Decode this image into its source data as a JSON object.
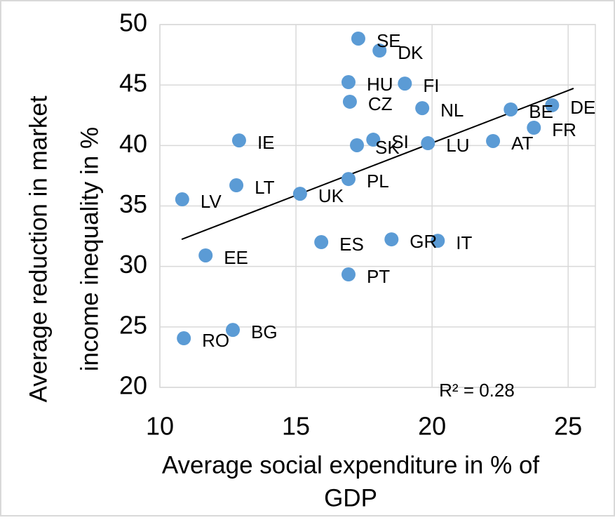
{
  "chart_data": {
    "type": "scatter",
    "xlabel": [
      "Average social expenditure in % of",
      "GDP"
    ],
    "ylabel": [
      "Average reduction in market",
      "income inequality in %"
    ],
    "xlim": [
      10,
      26
    ],
    "xticks": [
      10,
      15,
      20,
      25
    ],
    "ylim": [
      20,
      50
    ],
    "yticks": [
      20,
      25,
      30,
      35,
      40,
      45,
      50
    ],
    "grid": true,
    "color": "#5b9bd5",
    "labels": [
      "SE",
      "DK",
      "HU",
      "FI",
      "CZ",
      "NL",
      "BE",
      "DE",
      "FR",
      "IE",
      "SI",
      "SK",
      "LU",
      "AT",
      "PL",
      "LT",
      "UK",
      "LV",
      "EE",
      "ES",
      "GR",
      "IT",
      "PT",
      "BG",
      "RO"
    ],
    "x": [
      17.29,
      18.07,
      16.93,
      19.0,
      16.98,
      19.64,
      22.89,
      24.41,
      23.74,
      12.91,
      17.84,
      17.24,
      19.85,
      22.24,
      16.93,
      12.81,
      15.15,
      10.82,
      11.68,
      15.93,
      18.51,
      20.21,
      16.93,
      12.68,
      10.88
    ],
    "y": [
      48.84,
      47.85,
      45.24,
      45.12,
      43.62,
      43.09,
      42.98,
      43.33,
      41.47,
      40.42,
      40.48,
      40.02,
      40.19,
      40.37,
      37.23,
      36.71,
      36.01,
      35.55,
      30.91,
      32.01,
      32.24,
      32.12,
      29.34,
      24.75,
      24.06
    ],
    "trendline": {
      "x": [
        10.8,
        25.2
      ],
      "y": [
        32.24,
        44.72
      ],
      "label": "R² = 0.28"
    }
  }
}
